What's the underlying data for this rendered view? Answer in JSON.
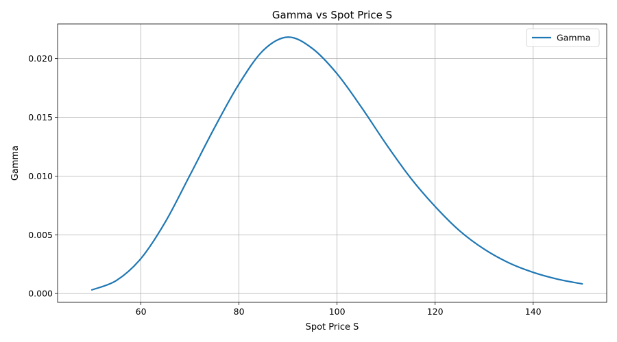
{
  "chart_data": {
    "type": "line",
    "title": "Gamma vs Spot Price S",
    "xlabel": "Spot Price S",
    "ylabel": "Gamma",
    "xlim": [
      43,
      155
    ],
    "ylim": [
      -0.00075,
      0.02295
    ],
    "xticks": [
      60,
      80,
      100,
      120,
      140
    ],
    "yticks": [
      0.0,
      0.005,
      0.01,
      0.015,
      0.02
    ],
    "ytick_labels": [
      "0.000",
      "0.005",
      "0.010",
      "0.015",
      "0.020"
    ],
    "grid": true,
    "legend_position": "upper right",
    "series": [
      {
        "name": "Gamma",
        "color": "#1f77b4",
        "x": [
          50,
          55,
          60,
          65,
          70,
          75,
          80,
          85,
          90,
          95,
          100,
          105,
          110,
          115,
          120,
          125,
          130,
          135,
          140,
          145,
          150
        ],
        "y": [
          0.00031,
          0.00111,
          0.00298,
          0.00611,
          0.01008,
          0.01411,
          0.01784,
          0.02072,
          0.02183,
          0.02085,
          0.01871,
          0.01584,
          0.01273,
          0.00984,
          0.00741,
          0.00534,
          0.00378,
          0.00262,
          0.0018,
          0.00122,
          0.00082
        ]
      }
    ]
  }
}
